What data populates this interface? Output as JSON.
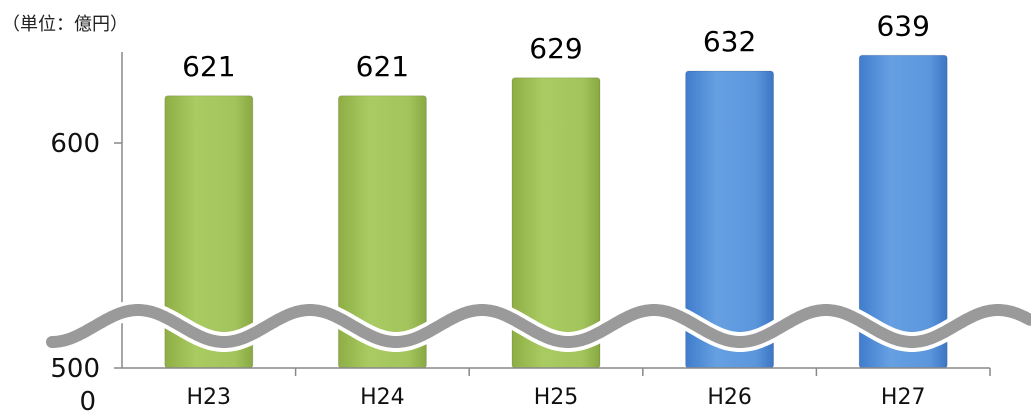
{
  "chart_data": {
    "type": "bar",
    "unit_label": "（単位：億円）",
    "categories": [
      "H23",
      "H24",
      "H25",
      "H26",
      "H27"
    ],
    "values": [
      621,
      621,
      629,
      632,
      639
    ],
    "data_labels": [
      "621",
      "621",
      "629",
      "632",
      "639"
    ],
    "bar_colors": [
      "#a3c45c",
      "#a3c45c",
      "#a3c45c",
      "#5b96dc",
      "#5b96dc"
    ],
    "y_ticks": [
      {
        "label": "600",
        "value": 600
      },
      {
        "label": "500",
        "value": 500
      },
      {
        "label": "0",
        "value": 0
      }
    ],
    "axis_break": true,
    "grid": false,
    "legend": "none",
    "xlabel": "",
    "ylabel": ""
  },
  "colors": {
    "axis": "#888888",
    "break_wave": "#9a9a9a",
    "green_bar": "#a3c45c",
    "blue_bar": "#5b96dc"
  }
}
